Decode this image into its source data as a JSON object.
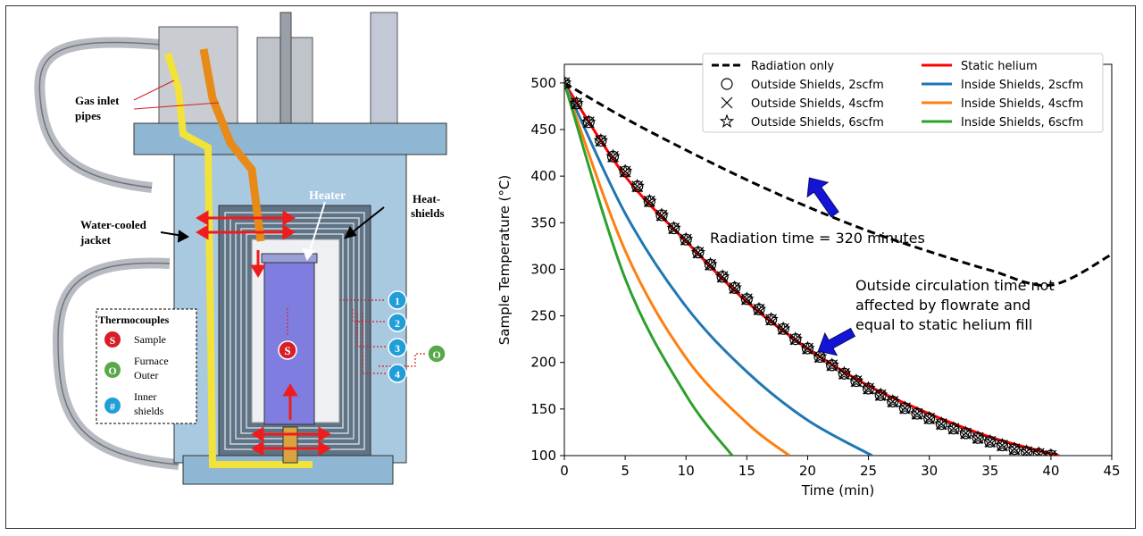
{
  "diagram": {
    "labels": {
      "gas_inlet": [
        "Gas inlet",
        "pipes"
      ],
      "heater": "Heater",
      "heat_shields": [
        "Heat-",
        "shields"
      ],
      "water_jacket": [
        "Water-cooled",
        "jacket"
      ]
    },
    "legend": {
      "title": "Thermocouples",
      "items": [
        {
          "symbol": "S",
          "color": "#d61f26",
          "text": [
            "Sample"
          ]
        },
        {
          "symbol": "O",
          "color": "#59a84b",
          "text": [
            "Furnace",
            "Outer"
          ]
        },
        {
          "symbol": "#",
          "color": "#1f9ed8",
          "text": [
            "Inner",
            "shields"
          ]
        }
      ]
    },
    "shield_markers": [
      "1",
      "2",
      "3",
      "4"
    ],
    "outer_marker": "O",
    "sample_marker": "S"
  },
  "chart_data": {
    "type": "line",
    "xlabel": "Time (min)",
    "ylabel": "Sample Temperature (°C)",
    "xlim": [
      0,
      45
    ],
    "ylim": [
      100,
      520
    ],
    "xticks": [
      0,
      5,
      10,
      15,
      20,
      25,
      30,
      35,
      40,
      45
    ],
    "yticks": [
      100,
      150,
      200,
      250,
      300,
      350,
      400,
      450,
      500
    ],
    "grid": false,
    "legend_position": "top-right",
    "series": [
      {
        "name": "Radiation only",
        "color": "#000000",
        "style": "dashed",
        "x": [
          0,
          5,
          10,
          15,
          20,
          25,
          30,
          35,
          40,
          45
        ],
        "y": [
          500,
          462,
          428,
          396,
          367,
          341,
          319,
          299,
          283,
          316
        ]
      },
      {
        "name": "Static helium",
        "color": "#ff0000",
        "style": "solid",
        "x": [
          0,
          5,
          10,
          15,
          20,
          25,
          30,
          35,
          40,
          40.7
        ],
        "y": [
          500,
          400,
          330,
          265,
          215,
          175,
          145,
          120,
          102,
          100
        ]
      },
      {
        "name": "Inside Shields, 2scfm",
        "color": "#1f77b4",
        "style": "solid",
        "x": [
          0,
          5,
          10,
          15,
          20,
          25.3
        ],
        "y": [
          500,
          360,
          260,
          190,
          138,
          100
        ]
      },
      {
        "name": "Inside Shields, 4scfm",
        "color": "#ff7f0e",
        "style": "solid",
        "x": [
          0,
          5,
          10,
          15,
          18.5
        ],
        "y": [
          500,
          320,
          205,
          135,
          100
        ]
      },
      {
        "name": "Inside Shields, 6scfm",
        "color": "#2ca02c",
        "style": "solid",
        "x": [
          0,
          5,
          10,
          13.8
        ],
        "y": [
          500,
          290,
          165,
          100
        ]
      },
      {
        "name": "Outside Shields, 2scfm",
        "marker": "circle",
        "x": [
          0,
          1,
          2,
          3,
          4,
          5,
          6,
          7,
          8,
          9,
          10,
          11,
          12,
          13,
          14,
          15,
          16,
          17,
          18,
          19,
          20,
          21,
          22,
          23,
          24,
          25,
          26,
          27,
          28,
          29,
          30,
          31,
          32,
          33,
          34,
          35,
          36,
          37,
          38,
          39,
          40
        ],
        "y": [
          500,
          478,
          458,
          438,
          421,
          405,
          389,
          373,
          358,
          344,
          332,
          318,
          305,
          292,
          280,
          268,
          257,
          246,
          236,
          225,
          215,
          206,
          197,
          188,
          180,
          172,
          165,
          158,
          151,
          145,
          140,
          134,
          129,
          124,
          119,
          115,
          111,
          107,
          104,
          102,
          100
        ]
      },
      {
        "name": "Outside Shields, 4scfm",
        "marker": "x",
        "x": [
          0,
          1,
          2,
          3,
          4,
          5,
          6,
          7,
          8,
          9,
          10,
          11,
          12,
          13,
          14,
          15,
          16,
          17,
          18,
          19,
          20,
          21,
          22,
          23,
          24,
          25,
          26,
          27,
          28,
          29,
          30,
          31,
          32,
          33,
          34,
          35,
          36,
          37,
          38,
          39,
          40
        ],
        "y": [
          500,
          478,
          458,
          438,
          421,
          405,
          389,
          373,
          358,
          344,
          332,
          318,
          305,
          292,
          280,
          268,
          257,
          246,
          236,
          225,
          215,
          206,
          197,
          188,
          180,
          172,
          165,
          158,
          151,
          145,
          140,
          134,
          129,
          124,
          119,
          115,
          111,
          107,
          104,
          102,
          100
        ]
      },
      {
        "name": "Outside Shields, 6scfm",
        "marker": "star",
        "x": [
          0,
          1,
          2,
          3,
          4,
          5,
          6,
          7,
          8,
          9,
          10,
          11,
          12,
          13,
          14,
          15,
          16,
          17,
          18,
          19,
          20,
          21,
          22,
          23,
          24,
          25,
          26,
          27,
          28,
          29,
          30,
          31,
          32,
          33,
          34,
          35,
          36,
          37,
          38,
          39,
          40
        ],
        "y": [
          500,
          478,
          458,
          438,
          421,
          405,
          389,
          373,
          358,
          344,
          332,
          318,
          305,
          292,
          280,
          268,
          257,
          246,
          236,
          225,
          215,
          206,
          197,
          188,
          180,
          172,
          165,
          158,
          151,
          145,
          140,
          134,
          129,
          124,
          119,
          115,
          111,
          107,
          104,
          102,
          100
        ]
      }
    ],
    "legend_order": [
      "Radiation only",
      "Static helium",
      "Outside Shields, 2scfm",
      "Inside Shields, 2scfm",
      "Outside Shields, 4scfm",
      "Inside Shields, 4scfm",
      "Outside Shields, 6scfm",
      "Inside Shields, 6scfm"
    ],
    "annotations": [
      {
        "text": [
          "Radiation time = 320 minutes"
        ],
        "arrow_to": [
          20,
          400
        ]
      },
      {
        "text": [
          "Outside circulation time not",
          "affected by flowrate and",
          "equal to static helium fill"
        ],
        "arrow_to": [
          20,
          216
        ]
      }
    ]
  }
}
